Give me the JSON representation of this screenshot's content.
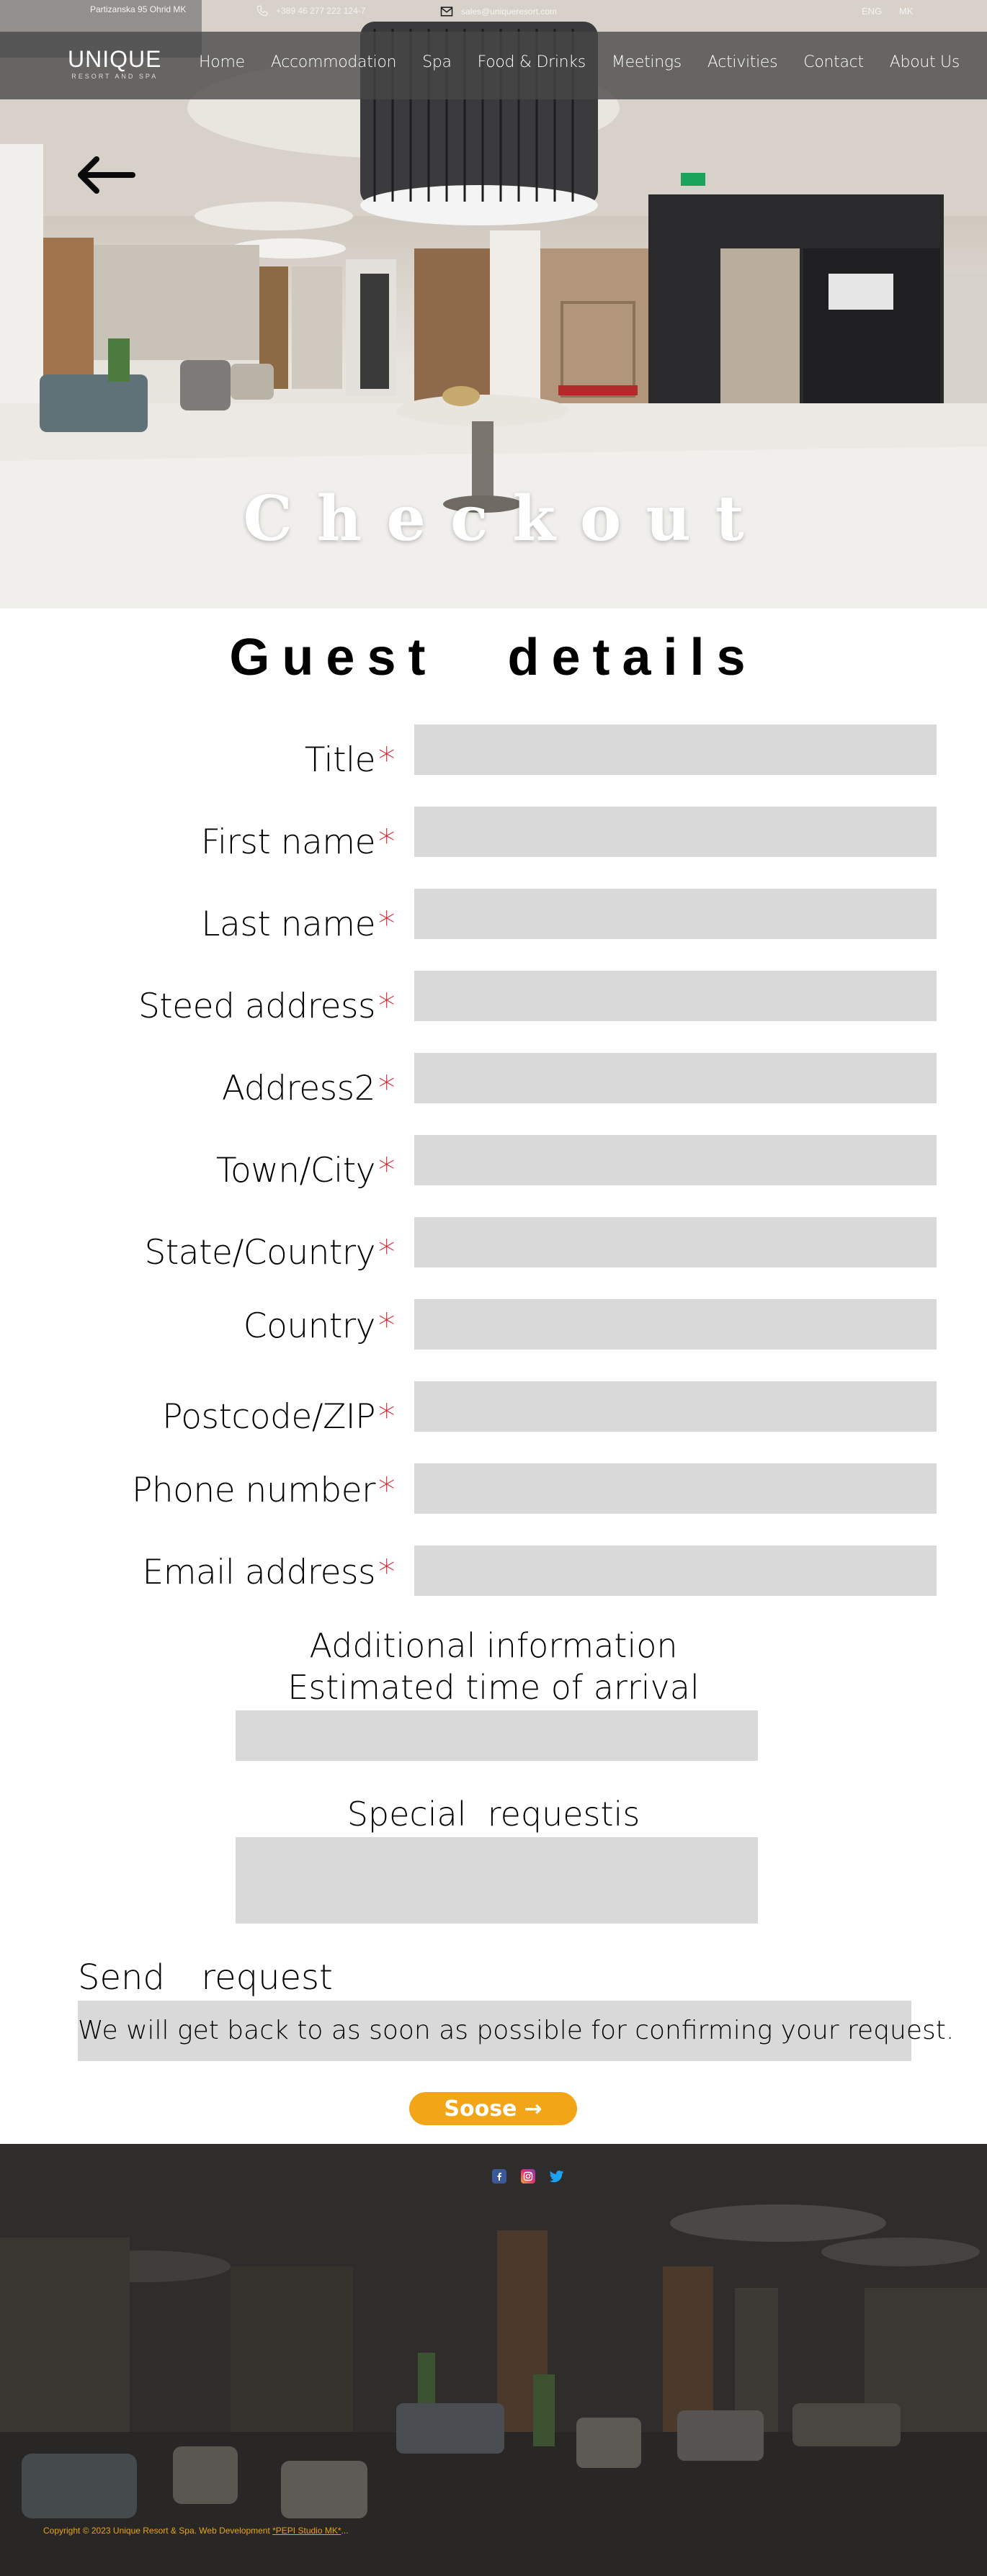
{
  "topbar": {
    "address": "Partizanska 95 Ohrid MK",
    "phone": "+389 46 277 222 124-7",
    "email": "sales@uniqueresort.com",
    "lang_en": "ENG",
    "lang_mk": "MK"
  },
  "brand": {
    "name": "UNIQUE",
    "tagline": "RESORT AND SPA"
  },
  "nav": [
    "Home",
    "Accommodation",
    "Spa",
    "Food & Drinks",
    "Meetings",
    "Activities",
    "Contact",
    "About Us"
  ],
  "hero": {
    "title": "Checkout"
  },
  "form": {
    "heading": "Guest details",
    "required_marker": "*",
    "fields": [
      {
        "label": "Title"
      },
      {
        "label": "First name"
      },
      {
        "label": "Last name"
      },
      {
        "label": "Steed address"
      },
      {
        "label": "Address2"
      },
      {
        "label": "Town/City"
      },
      {
        "label": "State/Country"
      },
      {
        "label": "Country"
      },
      {
        "label": "Postcode/ZIP"
      },
      {
        "label": "Phone number"
      },
      {
        "label": "Email address"
      }
    ],
    "additional_info": "Additional information",
    "arrival_label": "Estimated time of arrival",
    "special_label": "Special  requestis",
    "send_label": "Send  request",
    "notice": "We will get back to as soon as possible for confirming your request.",
    "button_label": "Soose",
    "button_arrow": "→"
  },
  "footer": {
    "socials": [
      "facebook-icon",
      "instagram-icon",
      "twitter-icon"
    ],
    "copyright": "Copyright © 2023 Unique Resort & Spa. Web Development ",
    "studio": "*PEPI Studio MK*",
    "trail": "..."
  },
  "colors": {
    "required": "#e0202a",
    "button": "#f2a516",
    "copyright": "#e8a317",
    "input_bg": "#d9d9d9"
  }
}
